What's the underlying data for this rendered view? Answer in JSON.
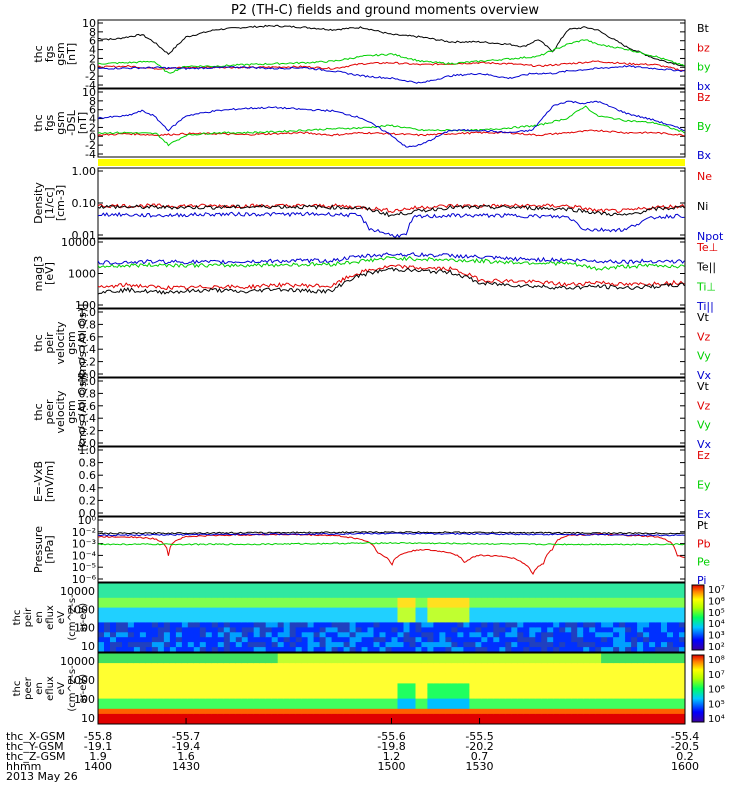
{
  "title": "P2 (TH-C) fields and ground moments overview",
  "date_label": "2013 May 26",
  "colors": {
    "black": "#000000",
    "red": "#e00000",
    "green": "#00d000",
    "blue": "#0000d0",
    "yellow": "#ffff00",
    "axis": "#000000"
  },
  "chart_data": [
    {
      "type": "line",
      "panel": "fgs-gsm",
      "ylabel": [
        "thc",
        "fgs",
        "gsm",
        "[nT]"
      ],
      "yticks": [
        "10",
        "8",
        "6",
        "4",
        "2",
        "0",
        "-2",
        "-4"
      ],
      "ylim": [
        -4,
        10
      ],
      "series": [
        {
          "name": "Bt",
          "color": "black",
          "x": [
            1400,
            1405,
            1410,
            1415,
            1419,
            1424,
            1430,
            1440,
            1450,
            1460,
            1470,
            1480,
            1490,
            1500,
            1510,
            1520,
            1530,
            1540,
            1545,
            1550,
            1555,
            1560,
            1566,
            1570,
            1580,
            1590,
            1600
          ],
          "values": [
            6.2,
            6.0,
            6.5,
            7.0,
            5.5,
            3.0,
            6.5,
            8.0,
            8.5,
            8.8,
            8.5,
            8.0,
            8.5,
            7.0,
            6.5,
            5.5,
            5.5,
            5.0,
            4.5,
            6.0,
            3.5,
            8.0,
            8.5,
            8.0,
            4.5,
            2.0,
            0.5
          ]
        },
        {
          "name": "bz",
          "color": "red",
          "x": [
            1400,
            1410,
            1420,
            1430,
            1440,
            1450,
            1460,
            1470,
            1480,
            1490,
            1500,
            1510,
            1520,
            1530,
            1540,
            1550,
            1560,
            1570,
            1580,
            1590,
            1600
          ],
          "values": [
            0.3,
            0.5,
            0.0,
            0.2,
            0.3,
            0.2,
            0.3,
            0.4,
            0.0,
            1.0,
            1.2,
            0.8,
            1.0,
            1.2,
            1.0,
            0.5,
            1.0,
            1.5,
            1.0,
            0.8,
            -0.5
          ]
        },
        {
          "name": "by",
          "color": "green",
          "x": [
            1400,
            1410,
            1419,
            1424,
            1430,
            1440,
            1450,
            1460,
            1470,
            1480,
            1490,
            1500,
            1510,
            1520,
            1530,
            1540,
            1550,
            1560,
            1566,
            1570,
            1580,
            1590,
            1600
          ],
          "values": [
            1.0,
            1.2,
            1.5,
            -1.0,
            0.5,
            0.5,
            0.8,
            1.0,
            1.2,
            1.5,
            2.5,
            3.0,
            1.5,
            1.0,
            1.5,
            2.0,
            2.5,
            5.0,
            6.0,
            5.0,
            4.0,
            2.5,
            0.5
          ]
        },
        {
          "name": "bx",
          "color": "blue",
          "x": [
            1400,
            1410,
            1420,
            1430,
            1440,
            1450,
            1460,
            1470,
            1480,
            1490,
            1500,
            1505,
            1510,
            1520,
            1530,
            1540,
            1548,
            1555,
            1560,
            1570,
            1580,
            1590,
            1600
          ],
          "values": [
            0.0,
            0.1,
            0.2,
            0.0,
            0.2,
            0.3,
            0.0,
            0.2,
            -0.5,
            -1.5,
            -2.0,
            -2.5,
            -3.0,
            -1.5,
            -1.0,
            -2.0,
            -1.0,
            -1.0,
            -0.5,
            0.0,
            0.5,
            0.0,
            -0.5
          ]
        }
      ]
    },
    {
      "type": "line",
      "panel": "fgs-gsm-dsl",
      "ylabel": [
        "thc",
        "fgs",
        "gsm",
        "-DSL",
        "[nT]"
      ],
      "yticks": [
        "10",
        "8",
        "6",
        "4",
        "2",
        "0",
        "-2",
        "-4"
      ],
      "ylim": [
        -4,
        10
      ],
      "series": [
        {
          "name": "Bz",
          "color": "red",
          "x": [
            1400,
            1410,
            1420,
            1430,
            1440,
            1450,
            1460,
            1470,
            1480,
            1490,
            1500,
            1510,
            1520,
            1530,
            1540,
            1550,
            1560,
            1570,
            1580,
            1590,
            1600
          ],
          "values": [
            0.5,
            0.8,
            0.5,
            0.8,
            0.8,
            0.6,
            0.8,
            1.0,
            0.5,
            1.0,
            0.8,
            0.5,
            0.8,
            1.0,
            1.0,
            0.5,
            1.0,
            1.5,
            1.0,
            1.0,
            0.5
          ]
        },
        {
          "name": "By",
          "color": "green",
          "x": [
            1400,
            1410,
            1420,
            1424,
            1430,
            1440,
            1450,
            1460,
            1470,
            1480,
            1490,
            1500,
            1510,
            1520,
            1530,
            1540,
            1550,
            1560,
            1566,
            1570,
            1580,
            1590,
            1600
          ],
          "values": [
            1.0,
            1.0,
            0.8,
            -1.5,
            0.5,
            1.0,
            1.0,
            1.2,
            1.5,
            1.8,
            2.0,
            2.5,
            1.5,
            1.5,
            1.5,
            2.0,
            2.5,
            4.0,
            6.5,
            4.5,
            3.5,
            3.0,
            1.0
          ]
        },
        {
          "name": "Bx",
          "color": "blue",
          "x": [
            1400,
            1410,
            1415,
            1419,
            1424,
            1430,
            1440,
            1450,
            1460,
            1470,
            1480,
            1490,
            1500,
            1505,
            1510,
            1520,
            1530,
            1540,
            1548,
            1555,
            1560,
            1566,
            1570,
            1580,
            1590,
            1600
          ],
          "values": [
            4.0,
            4.5,
            5.5,
            4.5,
            1.5,
            4.5,
            5.5,
            6.0,
            6.2,
            5.8,
            5.5,
            4.0,
            0.5,
            -2.0,
            -1.5,
            1.5,
            1.5,
            1.0,
            1.5,
            6.5,
            7.5,
            7.0,
            7.5,
            5.0,
            3.5,
            1.5
          ]
        }
      ]
    },
    {
      "type": "bar",
      "panel": "state-bar",
      "color": "yellow",
      "values": [
        1
      ]
    },
    {
      "type": "line",
      "panel": "density",
      "ylabel": [
        "Density",
        "[1/cc]",
        "[cm-3]"
      ],
      "yticks": [
        "1.00",
        "0.10",
        "0.01"
      ],
      "log": true,
      "ylim": [
        0.01,
        1.5
      ],
      "series": [
        {
          "name": "Ne",
          "color": "red",
          "x": [
            1400,
            1420,
            1440,
            1460,
            1480,
            1490,
            1500,
            1510,
            1520,
            1540,
            1560,
            1570,
            1580,
            1590,
            1600
          ],
          "values": [
            0.1,
            0.1,
            0.1,
            0.1,
            0.1,
            0.09,
            0.07,
            0.09,
            0.1,
            0.1,
            0.1,
            0.07,
            0.07,
            0.09,
            0.1
          ]
        },
        {
          "name": "Ni",
          "color": "black",
          "x": [
            1400,
            1420,
            1440,
            1460,
            1480,
            1490,
            1500,
            1510,
            1520,
            1540,
            1560,
            1570,
            1580,
            1590,
            1600
          ],
          "values": [
            0.095,
            0.09,
            0.09,
            0.095,
            0.09,
            0.085,
            0.05,
            0.07,
            0.09,
            0.09,
            0.08,
            0.06,
            0.05,
            0.08,
            0.09
          ]
        },
        {
          "name": "Npot",
          "color": "blue",
          "x": [
            1400,
            1420,
            1440,
            1460,
            1480,
            1489,
            1492,
            1500,
            1505,
            1508,
            1520,
            1540,
            1560,
            1565,
            1568,
            1580,
            1590,
            1600
          ],
          "values": [
            0.055,
            0.05,
            0.055,
            0.055,
            0.055,
            0.05,
            0.02,
            0.012,
            0.012,
            0.045,
            0.05,
            0.05,
            0.045,
            0.02,
            0.018,
            0.018,
            0.045,
            0.05
          ]
        }
      ]
    },
    {
      "type": "line",
      "panel": "temperature",
      "ylabel": [
        "mag[3",
        "[eV]"
      ],
      "yticks": [
        "10000",
        "1000",
        "100"
      ],
      "log": true,
      "ylim": [
        100,
        12000
      ],
      "series": [
        {
          "name": "Te⊥",
          "color": "red",
          "x": [
            1400,
            1410,
            1420,
            1430,
            1440,
            1450,
            1460,
            1470,
            1480,
            1490,
            1500,
            1510,
            1520,
            1530,
            1540,
            1550,
            1560,
            1570,
            1580,
            1590,
            1600
          ],
          "values": [
            400,
            500,
            420,
            400,
            450,
            420,
            500,
            480,
            450,
            1200,
            1800,
            1600,
            1500,
            700,
            650,
            600,
            500,
            600,
            500,
            550,
            600
          ]
        },
        {
          "name": "Te||",
          "color": "black",
          "x": [
            1400,
            1410,
            1420,
            1430,
            1440,
            1450,
            1460,
            1470,
            1480,
            1490,
            1500,
            1510,
            1520,
            1530,
            1540,
            1550,
            1560,
            1570,
            1580,
            1590,
            1600
          ],
          "values": [
            300,
            350,
            300,
            320,
            350,
            300,
            380,
            330,
            320,
            1000,
            1500,
            1300,
            1200,
            550,
            500,
            450,
            400,
            450,
            400,
            450,
            500
          ]
        },
        {
          "name": "Ti⊥",
          "color": "green",
          "x": [
            1400,
            1420,
            1440,
            1460,
            1480,
            1490,
            1500,
            1510,
            1520,
            1540,
            1560,
            1570,
            1580,
            1590,
            1600
          ],
          "values": [
            1800,
            2000,
            1900,
            2000,
            2100,
            2600,
            3200,
            3000,
            2800,
            2400,
            2200,
            1500,
            1800,
            1900,
            1800
          ]
        },
        {
          "name": "Ti||",
          "color": "blue",
          "x": [
            1400,
            1420,
            1440,
            1460,
            1480,
            1490,
            1500,
            1510,
            1520,
            1540,
            1560,
            1570,
            1580,
            1590,
            1600
          ],
          "values": [
            2300,
            2500,
            2400,
            2600,
            2700,
            3600,
            4200,
            4000,
            3800,
            3000,
            2800,
            2600,
            2500,
            2600,
            2500
          ]
        }
      ]
    },
    {
      "type": "line",
      "panel": "peir-velocity",
      "ylabel": [
        "thc",
        "peir",
        "velocity",
        "gsm",
        "[km/s (All Qs)]"
      ],
      "yticks": [
        "1.0",
        "0.8",
        "0.6",
        "0.4",
        "0.2",
        "0.0"
      ],
      "ylim": [
        0,
        1
      ],
      "series": [
        {
          "name": "Vt",
          "color": "black",
          "values": []
        },
        {
          "name": "Vz",
          "color": "red",
          "values": []
        },
        {
          "name": "Vy",
          "color": "green",
          "values": []
        },
        {
          "name": "Vx",
          "color": "blue",
          "values": []
        }
      ]
    },
    {
      "type": "line",
      "panel": "peer-velocity",
      "ylabel": [
        "thc",
        "peer",
        "velocity",
        "gsm",
        "[km/s (All Qs)]"
      ],
      "yticks": [
        "1.0",
        "0.8",
        "0.6",
        "0.4",
        "0.2",
        "0.0"
      ],
      "ylim": [
        0,
        1
      ],
      "series": [
        {
          "name": "Vt",
          "color": "black",
          "values": []
        },
        {
          "name": "Vz",
          "color": "red",
          "values": []
        },
        {
          "name": "Vy",
          "color": "green",
          "values": []
        },
        {
          "name": "Vx",
          "color": "blue",
          "values": []
        }
      ]
    },
    {
      "type": "line",
      "panel": "efield",
      "ylabel": [
        "E=-VxB",
        "[mV/m]"
      ],
      "yticks": [
        "1.0",
        "0.8",
        "0.6",
        "0.4",
        "0.2",
        "0.0"
      ],
      "ylim": [
        0,
        1
      ],
      "series": [
        {
          "name": "Ez",
          "color": "red",
          "values": []
        },
        {
          "name": "Ey",
          "color": "green",
          "values": []
        },
        {
          "name": "Ex",
          "color": "blue",
          "values": []
        }
      ]
    },
    {
      "type": "line",
      "panel": "pressure",
      "ylabel": [
        "Pressure",
        "[nPa]"
      ],
      "yticks": [
        "10⁰",
        "10⁻²",
        "10⁻³",
        "10⁻⁴",
        "10⁻⁵",
        "10⁻⁶"
      ],
      "log": true,
      "ylim": [
        1e-06,
        1
      ],
      "series": [
        {
          "name": "Pt",
          "color": "black",
          "x": [
            1400,
            1450,
            1500,
            1550,
            1600
          ],
          "values": [
            0.03,
            0.035,
            0.04,
            0.035,
            0.03
          ]
        },
        {
          "name": "Pb",
          "color": "red",
          "x": [
            1400,
            1410,
            1419,
            1424,
            1430,
            1440,
            1460,
            1480,
            1490,
            1495,
            1500,
            1510,
            1520,
            1525,
            1530,
            1540,
            1545,
            1548,
            1552,
            1555,
            1560,
            1570,
            1580,
            1590,
            1597,
            1600
          ],
          "values": [
            0.015,
            0.015,
            0.01,
            0.0003,
            0.015,
            0.02,
            0.025,
            0.02,
            0.008,
            0.0005,
            2e-05,
            0.001,
            0.0005,
            5e-05,
            0.0003,
            0.0002,
            5e-05,
            3e-06,
            5e-05,
            0.001,
            0.02,
            0.025,
            0.02,
            0.015,
            0.0003,
            0.0002
          ]
        },
        {
          "name": "Pe",
          "color": "green",
          "x": [
            1400,
            1450,
            1500,
            1550,
            1600
          ],
          "values": [
            0.003,
            0.003,
            0.004,
            0.003,
            0.003
          ]
        },
        {
          "name": "Pi",
          "color": "blue",
          "x": [
            1400,
            1450,
            1500,
            1550,
            1600
          ],
          "values": [
            0.02,
            0.025,
            0.03,
            0.025,
            0.02
          ]
        }
      ]
    },
    {
      "type": "heatmap",
      "panel": "peir-eflux",
      "ylabel": [
        "thc",
        "peir",
        "en",
        "eflux",
        "eV",
        "(cm^2-s-",
        "sr-eV)"
      ],
      "yticks": [
        "10000",
        "1000",
        "100",
        "10"
      ],
      "colorbar_ticks": [
        "10⁷",
        "10⁶",
        "10⁵",
        "10⁴",
        "10³",
        "10²"
      ]
    },
    {
      "type": "heatmap",
      "panel": "peer-eflux",
      "ylabel": [
        "thc",
        "peer",
        "en",
        "eflux",
        "eV",
        "(cm^2-s-",
        "sr-eV)"
      ],
      "yticks": [
        "10000",
        "1000",
        "100",
        "10"
      ],
      "colorbar_ticks": [
        "10⁸",
        "10⁷",
        "10⁶",
        "10⁵",
        "10⁴"
      ]
    }
  ],
  "x_axis": {
    "tick_times": [
      "1400",
      "1430",
      "1500",
      "1530",
      "1600"
    ],
    "rows": [
      {
        "label": "thc_X-GSM",
        "values": [
          "-55.8",
          "-55.7",
          "-55.6",
          "-55.5",
          "-55.4"
        ]
      },
      {
        "label": "thc_Y-GSM",
        "values": [
          "-19.1",
          "-19.4",
          "-19.8",
          "-20.2",
          "-20.5"
        ]
      },
      {
        "label": "thc_Z-GSM",
        "values": [
          "1.9",
          "1.6",
          "1.2",
          "0.7",
          "0.2"
        ]
      },
      {
        "label": "hhmm",
        "values": [
          "1400",
          "1430",
          "1500",
          "1530",
          "1600"
        ]
      }
    ]
  }
}
